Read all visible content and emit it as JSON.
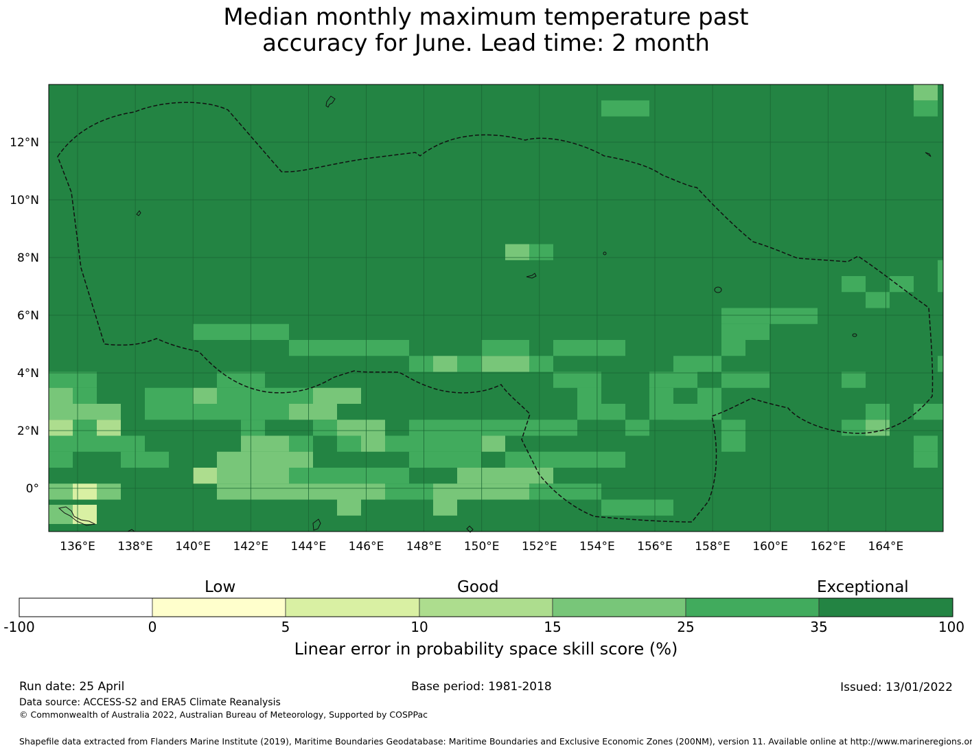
{
  "title": {
    "line1": "Median monthly maximum temperature past",
    "line2": "accuracy for June. Lead time: 2 month"
  },
  "map": {
    "lon_labels": [
      "136°E",
      "138°E",
      "140°E",
      "142°E",
      "144°E",
      "146°E",
      "148°E",
      "150°E",
      "152°E",
      "154°E",
      "156°E",
      "158°E",
      "160°E",
      "162°E",
      "164°E"
    ],
    "lat_labels": [
      "12°N",
      "10°N",
      "8°N",
      "6°N",
      "4°N",
      "2°N",
      "0°"
    ],
    "base_color": "#238443",
    "grid_color": "#1a6633",
    "boundary_style": "dashed",
    "lighter_cells_region": "south-west and south"
  },
  "colorbar": {
    "category_labels": [
      "Low",
      "Good",
      "Exceptional"
    ],
    "ticks": [
      "-100",
      "0",
      "5",
      "10",
      "15",
      "25",
      "35",
      "100"
    ],
    "colors": [
      "#ffffff",
      "#ffffcc",
      "#d9f0a3",
      "#addd8e",
      "#78c679",
      "#41ab5d",
      "#238443"
    ],
    "title": "Linear error in probability space skill score (%)"
  },
  "footer": {
    "run_date": "Run date: 25 April",
    "base_period": "Base period: 1981-2018",
    "issued": "Issued: 13/01/2022",
    "data_source": "Data source: ACCESS-S2 and ERA5 Climate Reanalysis",
    "copyright": "© Commonwealth of Australia 2022, Australian Bureau of Meteorology, Supported by COSPPac",
    "shapefile": "Shapefile data extracted from Flanders Marine Institute (2019), Maritime Boundaries Geodatabase: Maritime Boundaries and Exclusive Economic Zones (200NM), version 11. Available online at http://www.marineregions.org/."
  }
}
